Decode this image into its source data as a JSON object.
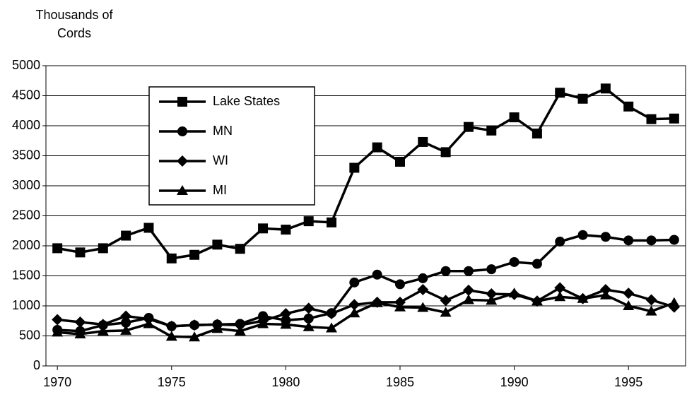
{
  "chart_data": {
    "type": "line",
    "y_label": "Thousands of Cords",
    "x": [
      1970,
      1971,
      1972,
      1973,
      1974,
      1975,
      1976,
      1977,
      1978,
      1979,
      1980,
      1981,
      1982,
      1983,
      1984,
      1985,
      1986,
      1987,
      1988,
      1989,
      1990,
      1991,
      1992,
      1993,
      1994,
      1995,
      1996,
      1997
    ],
    "series": [
      {
        "name": "Lake States",
        "color": "#000000",
        "marker": "square",
        "values": [
          1960,
          1890,
          1960,
          2170,
          2300,
          1790,
          1850,
          2020,
          1950,
          2290,
          2270,
          2410,
          2390,
          3300,
          3640,
          3400,
          3730,
          3560,
          3980,
          3920,
          4140,
          3870,
          4550,
          4450,
          4620,
          4320,
          4110,
          4120
        ]
      },
      {
        "name": "MN",
        "color": "#000000",
        "marker": "circle",
        "values": [
          600,
          580,
          680,
          720,
          800,
          660,
          680,
          690,
          700,
          830,
          760,
          790,
          880,
          1390,
          1520,
          1360,
          1460,
          1580,
          1580,
          1610,
          1730,
          1700,
          2070,
          2180,
          2150,
          2090,
          2090,
          2100
        ]
      },
      {
        "name": "WI",
        "color": "#000000",
        "marker": "diamond",
        "values": [
          770,
          730,
          690,
          830,
          780,
          660,
          680,
          690,
          680,
          750,
          870,
          960,
          870,
          1020,
          1060,
          1060,
          1270,
          1090,
          1260,
          1200,
          1190,
          1080,
          1300,
          1120,
          1270,
          1210,
          1100,
          980
        ]
      },
      {
        "name": "MI",
        "color": "#000000",
        "marker": "triangle",
        "values": [
          560,
          530,
          580,
          590,
          700,
          490,
          480,
          620,
          580,
          700,
          690,
          650,
          630,
          880,
          1050,
          980,
          970,
          890,
          1100,
          1090,
          1210,
          1080,
          1150,
          1120,
          1180,
          1000,
          910,
          1050
        ]
      }
    ],
    "xlim": [
      1969.5,
      1997.5
    ],
    "xticks": [
      1970,
      1975,
      1980,
      1985,
      1990,
      1995
    ],
    "ylim": [
      0,
      5000
    ],
    "yticks": [
      0,
      500,
      1000,
      1500,
      2000,
      2500,
      3000,
      3500,
      4000,
      4500,
      5000
    ],
    "grid": true,
    "legend": "upper left"
  }
}
